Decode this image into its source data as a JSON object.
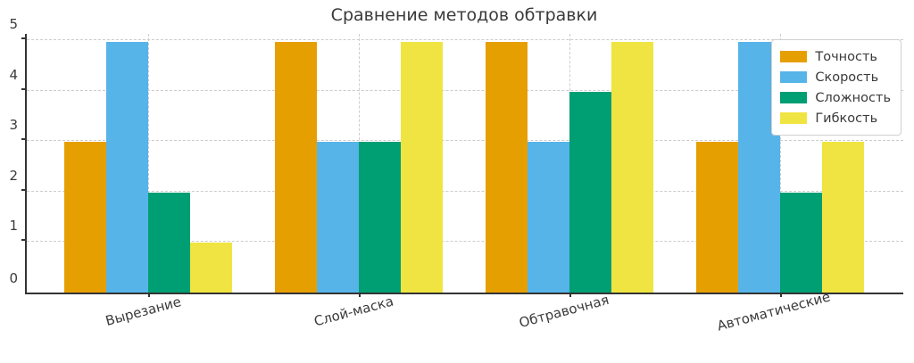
{
  "chart_data": {
    "type": "bar",
    "title": "Сравнение методов обтравки",
    "categories": [
      "Вырезание",
      "Слой-маска",
      "Обтравочная",
      "Автоматические"
    ],
    "series": [
      {
        "name": "Точность",
        "color": "#E69F00",
        "values": [
          3,
          5,
          5,
          3
        ]
      },
      {
        "name": "Скорость",
        "color": "#56B4E9",
        "values": [
          5,
          3,
          3,
          5
        ]
      },
      {
        "name": "Сложность",
        "color": "#009E73",
        "values": [
          2,
          3,
          4,
          2
        ]
      },
      {
        "name": "Гибкость",
        "color": "#F0E442",
        "values": [
          1,
          5,
          5,
          3
        ]
      }
    ],
    "xlabel": "",
    "ylabel": "",
    "ylim": [
      0,
      5.16
    ],
    "yticks": [
      0,
      1,
      2,
      3,
      4,
      5
    ],
    "grid": "dashed horizontal and vertical",
    "legend_position": "upper right",
    "xtick_rotation_deg": 15,
    "axis_color": "#333333",
    "grid_color": "#cccccc",
    "text_color": "#3a3a3a"
  }
}
